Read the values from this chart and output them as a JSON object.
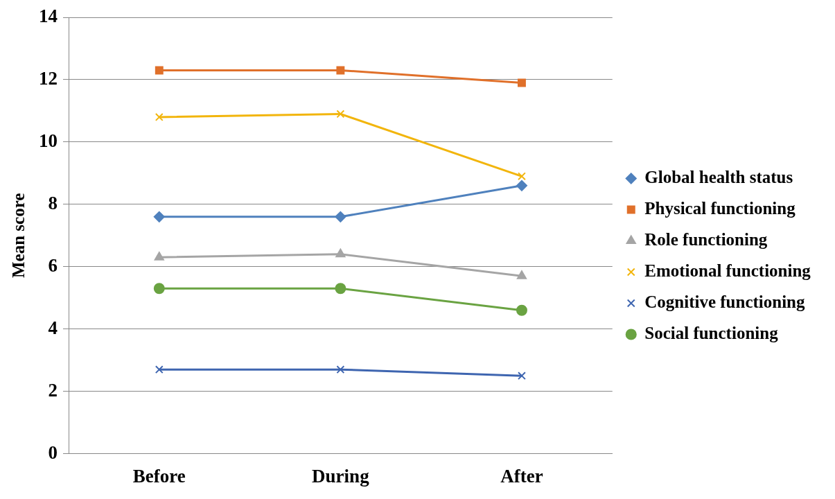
{
  "chart_data": {
    "type": "line",
    "ylabel": "Mean score",
    "categories": [
      "Before",
      "During",
      "After"
    ],
    "series": [
      {
        "name": "Global health status",
        "color": "#4f81bd",
        "marker": "diamond",
        "values": [
          7.6,
          7.6,
          8.6
        ]
      },
      {
        "name": "Physical functioning",
        "color": "#e0702a",
        "marker": "square",
        "values": [
          12.3,
          12.3,
          11.9
        ]
      },
      {
        "name": "Role functioning",
        "color": "#a5a5a5",
        "marker": "triangle",
        "values": [
          6.3,
          6.4,
          5.7
        ]
      },
      {
        "name": "Emotional functioning",
        "color": "#f2b50c",
        "marker": "cross",
        "values": [
          10.8,
          10.9,
          8.9
        ]
      },
      {
        "name": "Cognitive functioning",
        "color": "#3e65b0",
        "marker": "cross",
        "values": [
          2.7,
          2.7,
          2.5
        ]
      },
      {
        "name": "Social functioning",
        "color": "#6aa342",
        "marker": "circle",
        "values": [
          5.3,
          5.3,
          4.6
        ]
      }
    ],
    "ylim": [
      0,
      14
    ],
    "yticks": [
      0,
      2,
      4,
      6,
      8,
      10,
      12,
      14
    ],
    "grid": "y",
    "legend": "right",
    "line_style": "solid"
  }
}
